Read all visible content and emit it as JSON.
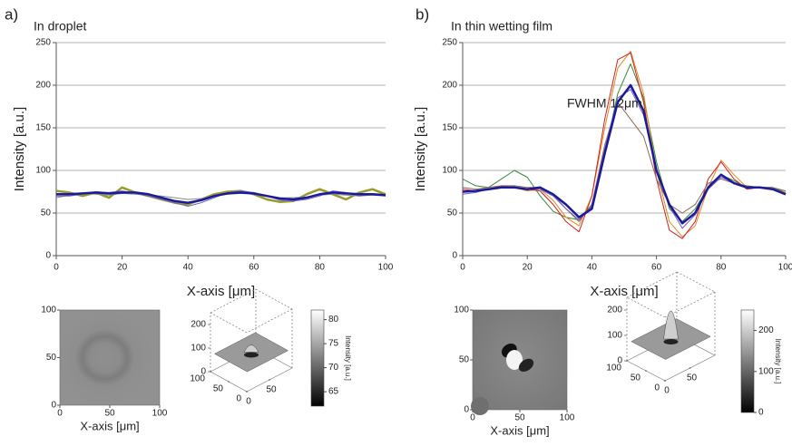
{
  "chart_data": [
    {
      "type": "line",
      "panel_label": "a)",
      "title": "In droplet",
      "xlabel": "X-axis [μm]",
      "ylabel": "Intensity [a.u.]",
      "x": [
        0,
        4,
        8,
        12,
        16,
        20,
        24,
        28,
        32,
        36,
        40,
        44,
        48,
        52,
        56,
        60,
        64,
        68,
        72,
        76,
        80,
        84,
        88,
        92,
        96,
        100
      ],
      "xlim": [
        0,
        100
      ],
      "ylim": [
        0,
        250
      ],
      "xticks": [
        0,
        20,
        40,
        60,
        80,
        100
      ],
      "yticks": [
        0,
        50,
        100,
        150,
        200,
        250
      ],
      "grid": true,
      "series": [
        {
          "color": "#9a9a2a",
          "linewidth": 2.5,
          "values": [
            76,
            74,
            70,
            74,
            68,
            80,
            74,
            70,
            66,
            62,
            60,
            66,
            72,
            75,
            76,
            72,
            66,
            63,
            64,
            72,
            78,
            72,
            66,
            74,
            78,
            72
          ]
        },
        {
          "color": "#8a8a8a",
          "linewidth": 1,
          "values": [
            68,
            71,
            73,
            72,
            71,
            73,
            72,
            71,
            70,
            68,
            66,
            67,
            70,
            72,
            73,
            72,
            70,
            68,
            68,
            69,
            71,
            72,
            71,
            70,
            71,
            70
          ]
        },
        {
          "color": "#7060c0",
          "linewidth": 1,
          "values": [
            70,
            70,
            72,
            75,
            74,
            76,
            73,
            70,
            66,
            62,
            58,
            62,
            68,
            74,
            76,
            74,
            70,
            65,
            64,
            66,
            70,
            76,
            74,
            70,
            72,
            70
          ]
        },
        {
          "color": "#1a1a9a",
          "linewidth": 2.5,
          "values": [
            72,
            72,
            73,
            74,
            73,
            74,
            74,
            72,
            68,
            64,
            62,
            65,
            70,
            73,
            74,
            73,
            70,
            67,
            66,
            68,
            72,
            74,
            73,
            72,
            72,
            71
          ]
        }
      ]
    },
    {
      "type": "line",
      "panel_label": "b)",
      "title": "In thin wetting film",
      "xlabel": "X-axis [μm]",
      "ylabel": "Intensity [a.u.]",
      "annotation": "FWHM 12μm",
      "x": [
        0,
        4,
        8,
        12,
        16,
        20,
        24,
        28,
        32,
        36,
        40,
        44,
        48,
        52,
        56,
        60,
        64,
        68,
        72,
        76,
        80,
        84,
        88,
        92,
        96,
        100
      ],
      "xlim": [
        0,
        100
      ],
      "ylim": [
        0,
        250
      ],
      "xticks": [
        0,
        20,
        40,
        60,
        80,
        100
      ],
      "yticks": [
        0,
        50,
        100,
        150,
        200,
        250
      ],
      "grid": true,
      "series": [
        {
          "color": "#3a8a3a",
          "linewidth": 1,
          "values": [
            90,
            82,
            80,
            90,
            100,
            92,
            70,
            52,
            45,
            42,
            60,
            120,
            190,
            225,
            185,
            110,
            55,
            40,
            55,
            80,
            95,
            88,
            80,
            80,
            80,
            74
          ]
        },
        {
          "color": "#e08a20",
          "linewidth": 1,
          "values": [
            76,
            76,
            78,
            80,
            80,
            76,
            78,
            65,
            45,
            35,
            70,
            150,
            220,
            240,
            190,
            100,
            40,
            22,
            35,
            80,
            112,
            95,
            80,
            80,
            78,
            74
          ]
        },
        {
          "color": "#d02020",
          "linewidth": 1,
          "values": [
            78,
            76,
            78,
            82,
            80,
            78,
            76,
            60,
            40,
            28,
            70,
            160,
            230,
            238,
            180,
            90,
            30,
            20,
            40,
            90,
            110,
            90,
            78,
            80,
            78,
            72
          ]
        },
        {
          "color": "#8a6a5a",
          "linewidth": 1,
          "values": [
            80,
            78,
            80,
            82,
            82,
            80,
            80,
            72,
            55,
            40,
            60,
            130,
            180,
            160,
            140,
            90,
            60,
            50,
            60,
            85,
            90,
            85,
            82,
            80,
            80,
            76
          ]
        },
        {
          "color": "#7060c0",
          "linewidth": 1,
          "values": [
            72,
            74,
            78,
            80,
            80,
            78,
            78,
            70,
            55,
            42,
            58,
            125,
            185,
            195,
            165,
            100,
            58,
            32,
            48,
            78,
            92,
            86,
            80,
            80,
            78,
            72
          ]
        },
        {
          "color": "#1a1a9a",
          "linewidth": 2.5,
          "values": [
            75,
            76,
            78,
            80,
            80,
            78,
            80,
            72,
            60,
            45,
            55,
            120,
            180,
            200,
            170,
            100,
            60,
            38,
            50,
            80,
            95,
            85,
            80,
            80,
            78,
            72
          ]
        }
      ]
    },
    {
      "type": "image",
      "xlabel": "X-axis [μm]",
      "xlim": [
        0,
        100
      ],
      "ylim": [
        0,
        100
      ],
      "xticks": [
        0,
        50,
        100
      ],
      "yticks": [
        0,
        50,
        100
      ]
    },
    {
      "type": "surface",
      "zlim": [
        0,
        250
      ],
      "zticks": [
        0,
        100,
        200
      ],
      "xlim": [
        0,
        100
      ],
      "xticks": [
        0,
        50,
        100
      ],
      "yticks": [
        0,
        50
      ],
      "colorbar": {
        "label": "Intensity [a.u.]",
        "lim": [
          62,
          82
        ],
        "ticks": [
          65,
          70,
          75,
          80
        ]
      }
    },
    {
      "type": "image",
      "xlabel": "X-axis [μm]",
      "xlim": [
        0,
        100
      ],
      "ylim": [
        0,
        100
      ],
      "xticks": [
        0,
        50,
        100
      ],
      "yticks": [
        0,
        50,
        100
      ]
    },
    {
      "type": "surface",
      "zlim": [
        0,
        250
      ],
      "zticks": [
        0,
        100,
        200
      ],
      "xlim": [
        0,
        100
      ],
      "xticks": [
        0,
        50,
        100
      ],
      "yticks": [
        0,
        50
      ],
      "colorbar": {
        "label": "Intensity [a.u.]",
        "lim": [
          0,
          250
        ],
        "ticks": [
          0,
          100,
          200
        ]
      }
    }
  ]
}
